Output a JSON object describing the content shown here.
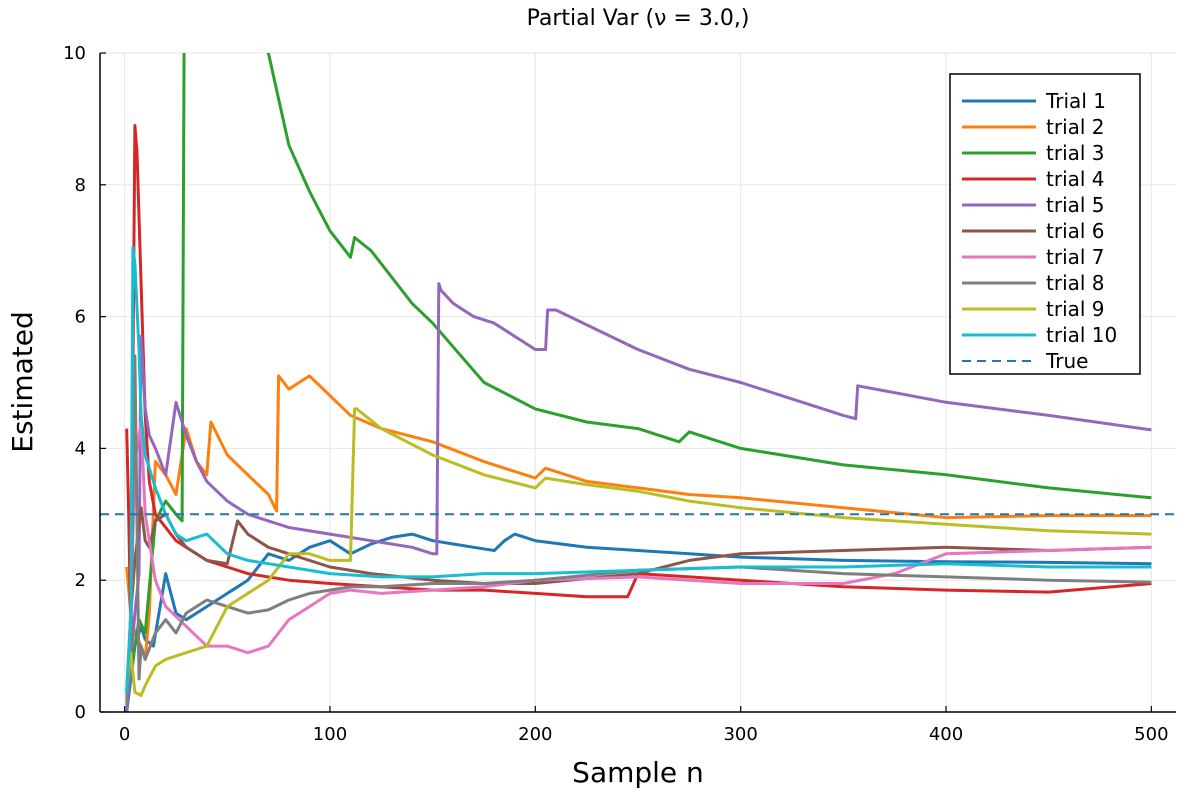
{
  "chart_data": {
    "type": "line",
    "title": "Partial Var (ν = 3.0,)",
    "xlabel": "Sample n",
    "ylabel": "Estimated",
    "xlim": [
      -12,
      512
    ],
    "ylim": [
      0,
      10
    ],
    "xticks": [
      0,
      100,
      200,
      300,
      400,
      500
    ],
    "yticks": [
      0,
      2,
      4,
      6,
      8,
      10
    ],
    "grid": true,
    "legend_position": "top-right",
    "reference": {
      "name": "True",
      "y": 3.0,
      "color": "#1f77b4",
      "style": "dashed"
    },
    "series": [
      {
        "name": "Trial 1",
        "color": "#1f77b4",
        "x": [
          1,
          3,
          5,
          8,
          10,
          14,
          20,
          25,
          30,
          40,
          50,
          55,
          60,
          65,
          70,
          80,
          90,
          100,
          110,
          120,
          130,
          140,
          150,
          160,
          170,
          180,
          185,
          190,
          200,
          225,
          250,
          275,
          300,
          350,
          400,
          450,
          500
        ],
        "y": [
          0,
          0.5,
          1.0,
          1.3,
          1.1,
          1.0,
          2.1,
          1.5,
          1.4,
          1.6,
          1.8,
          1.9,
          2.0,
          2.2,
          2.4,
          2.3,
          2.5,
          2.6,
          2.4,
          2.55,
          2.65,
          2.7,
          2.6,
          2.55,
          2.5,
          2.45,
          2.6,
          2.7,
          2.6,
          2.5,
          2.45,
          2.4,
          2.35,
          2.3,
          2.28,
          2.27,
          2.25
        ]
      },
      {
        "name": "trial 2",
        "color": "#ff7f0e",
        "x": [
          1,
          3,
          5,
          8,
          10,
          12,
          15,
          20,
          25,
          30,
          35,
          40,
          42,
          50,
          60,
          70,
          74,
          75,
          80,
          90,
          100,
          110,
          125,
          150,
          175,
          200,
          205,
          225,
          250,
          275,
          300,
          350,
          400,
          450,
          500
        ],
        "y": [
          2.2,
          1.5,
          1.2,
          1.0,
          0.8,
          1.5,
          3.8,
          3.6,
          3.3,
          4.3,
          3.8,
          3.6,
          4.4,
          3.9,
          3.6,
          3.3,
          3.05,
          5.1,
          4.9,
          5.1,
          4.8,
          4.5,
          4.3,
          4.1,
          3.8,
          3.55,
          3.7,
          3.5,
          3.4,
          3.3,
          3.25,
          3.1,
          2.95,
          2.98,
          2.98
        ]
      },
      {
        "name": "trial 3",
        "color": "#2ca02c",
        "x": [
          1,
          3,
          5,
          7,
          10,
          15,
          20,
          25,
          28,
          29,
          30,
          35,
          40,
          60,
          70,
          80,
          90,
          100,
          105,
          110,
          112,
          120,
          140,
          150,
          175,
          200,
          225,
          250,
          260,
          270,
          275,
          300,
          350,
          400,
          450,
          500
        ],
        "y": [
          0.2,
          0.6,
          1.0,
          1.4,
          1.2,
          2.9,
          3.2,
          3.0,
          2.9,
          10.5,
          10.5,
          10.5,
          10.5,
          10.5,
          10.0,
          8.6,
          7.9,
          7.3,
          7.1,
          6.9,
          7.2,
          7.0,
          6.2,
          5.9,
          5.0,
          4.6,
          4.4,
          4.3,
          4.2,
          4.1,
          4.25,
          4.0,
          3.75,
          3.6,
          3.4,
          3.25
        ]
      },
      {
        "name": "trial 4",
        "color": "#d62728",
        "x": [
          1,
          2,
          3,
          5,
          6,
          8,
          10,
          12,
          15,
          20,
          25,
          30,
          40,
          50,
          60,
          80,
          100,
          125,
          150,
          175,
          200,
          225,
          245,
          250,
          275,
          300,
          350,
          400,
          450,
          500
        ],
        "y": [
          4.3,
          3.0,
          1.2,
          8.9,
          8.5,
          6.5,
          4.5,
          3.5,
          3.0,
          2.8,
          2.6,
          2.5,
          2.3,
          2.2,
          2.1,
          2.0,
          1.95,
          1.9,
          1.85,
          1.85,
          1.8,
          1.75,
          1.75,
          2.1,
          2.05,
          2.0,
          1.9,
          1.85,
          1.82,
          1.95
        ]
      },
      {
        "name": "trial 5",
        "color": "#9467bd",
        "x": [
          1,
          3,
          5,
          7,
          8,
          10,
          12,
          15,
          20,
          25,
          30,
          35,
          40,
          50,
          60,
          70,
          80,
          100,
          120,
          140,
          150,
          152,
          153,
          154,
          160,
          170,
          180,
          190,
          200,
          205,
          206,
          210,
          250,
          275,
          300,
          350,
          356,
          357,
          400,
          450,
          500
        ],
        "y": [
          0,
          0.8,
          1.5,
          2.1,
          5.7,
          4.6,
          4.2,
          4.0,
          3.6,
          4.7,
          4.2,
          3.8,
          3.5,
          3.2,
          3.0,
          2.9,
          2.8,
          2.7,
          2.6,
          2.5,
          2.4,
          2.4,
          6.5,
          6.4,
          6.2,
          6.0,
          5.9,
          5.7,
          5.5,
          5.5,
          6.1,
          6.1,
          5.5,
          5.2,
          5.0,
          4.5,
          4.45,
          4.95,
          4.7,
          4.5,
          4.28
        ]
      },
      {
        "name": "trial 6",
        "color": "#8c564b",
        "x": [
          1,
          3,
          5,
          8,
          10,
          12,
          15,
          20,
          25,
          30,
          40,
          50,
          55,
          60,
          70,
          80,
          100,
          120,
          150,
          175,
          200,
          250,
          275,
          300,
          350,
          400,
          450,
          500
        ],
        "y": [
          0.3,
          1.5,
          2.3,
          3.1,
          2.6,
          2.5,
          2.9,
          3.0,
          2.7,
          2.5,
          2.3,
          2.25,
          2.9,
          2.7,
          2.5,
          2.4,
          2.2,
          2.1,
          2.0,
          1.95,
          1.95,
          2.1,
          2.3,
          2.4,
          2.45,
          2.5,
          2.45,
          2.5
        ]
      },
      {
        "name": "trial 7",
        "color": "#e377c2",
        "x": [
          1,
          3,
          5,
          8,
          10,
          15,
          20,
          30,
          40,
          50,
          60,
          70,
          80,
          90,
          100,
          110,
          125,
          150,
          175,
          200,
          250,
          275,
          300,
          350,
          375,
          400,
          450,
          500
        ],
        "y": [
          0.2,
          1.5,
          3.8,
          4.4,
          3.0,
          2.0,
          1.6,
          1.3,
          1.0,
          1.0,
          0.9,
          1.0,
          1.4,
          1.6,
          1.8,
          1.85,
          1.8,
          1.85,
          1.9,
          2.0,
          2.05,
          2.0,
          1.95,
          1.95,
          2.1,
          2.4,
          2.45,
          2.5
        ]
      },
      {
        "name": "trial 8",
        "color": "#7f7f7f",
        "x": [
          1,
          3,
          5,
          7,
          8,
          10,
          15,
          20,
          25,
          30,
          40,
          50,
          60,
          70,
          80,
          90,
          100,
          110,
          125,
          150,
          175,
          200,
          250,
          300,
          350,
          400,
          450,
          500
        ],
        "y": [
          0.1,
          1.0,
          5.4,
          0.5,
          1.0,
          0.8,
          1.2,
          1.4,
          1.2,
          1.5,
          1.7,
          1.6,
          1.5,
          1.55,
          1.7,
          1.8,
          1.85,
          1.9,
          1.9,
          1.95,
          1.95,
          2.0,
          2.15,
          2.2,
          2.1,
          2.05,
          2.0,
          1.97
        ]
      },
      {
        "name": "trial 9",
        "color": "#bcbd22",
        "x": [
          1,
          3,
          5,
          8,
          10,
          15,
          20,
          30,
          40,
          50,
          60,
          70,
          80,
          90,
          100,
          110,
          112,
          113,
          125,
          150,
          175,
          200,
          205,
          225,
          250,
          275,
          300,
          350,
          400,
          450,
          500
        ],
        "y": [
          0.4,
          0.9,
          0.3,
          0.25,
          0.4,
          0.7,
          0.8,
          0.9,
          1.0,
          1.6,
          1.8,
          2.0,
          2.4,
          2.4,
          2.3,
          2.3,
          4.6,
          4.6,
          4.3,
          3.9,
          3.6,
          3.4,
          3.55,
          3.45,
          3.35,
          3.2,
          3.1,
          2.95,
          2.85,
          2.75,
          2.7
        ]
      },
      {
        "name": "trial 10",
        "color": "#17becf",
        "x": [
          1,
          3,
          4,
          5,
          7,
          8,
          10,
          15,
          20,
          25,
          30,
          40,
          50,
          60,
          80,
          100,
          125,
          150,
          175,
          200,
          250,
          300,
          350,
          400,
          450,
          500
        ],
        "y": [
          0.3,
          1.5,
          7.05,
          6.8,
          5.5,
          4.5,
          3.9,
          3.4,
          3.0,
          2.7,
          2.6,
          2.7,
          2.4,
          2.3,
          2.2,
          2.1,
          2.05,
          2.05,
          2.1,
          2.1,
          2.15,
          2.2,
          2.2,
          2.25,
          2.2,
          2.2
        ]
      }
    ]
  }
}
